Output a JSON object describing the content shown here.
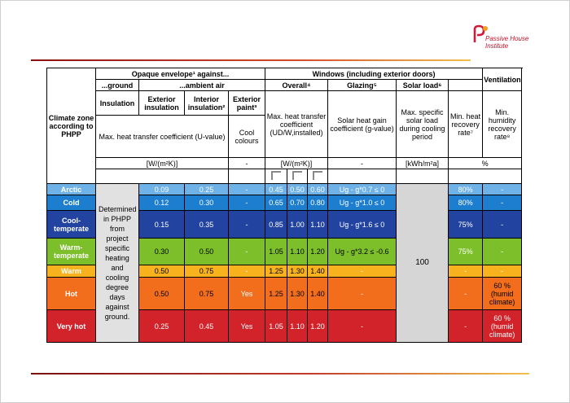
{
  "logo": {
    "line1": "Passive House",
    "line2": "Institute"
  },
  "header": {
    "climate_zone": "Climate zone according to PHPP",
    "opaque_envelope": "Opaque envelope¹ against...",
    "ground_group": "...ground",
    "air_group": "...ambient air",
    "insulation": "Insulation",
    "exterior_insulation": "Exterior insulation",
    "interior_insulation": "Interior insulation²",
    "exterior_paint": "Exterior paint³",
    "max_heat_transfer": "Max. heat transfer coefficient (U-value)",
    "cool_colours": "Cool colours",
    "windows": "Windows (including exterior doors)",
    "overall": "Overall⁴",
    "overall_desc": "Max. heat transfer coefficient (UD/W,installed)",
    "glazing": "Glazing⁵",
    "glazing_desc": "Solar heat gain coefficient (g-value)",
    "solar_load": "Solar load⁶",
    "solar_load_desc": "Max. specific solar load during cooling period",
    "ventilation": "Ventilation",
    "min_heat_recovery": "Min. heat recovery rate⁷",
    "min_humidity_recovery": "Min. humidity recovery rate⁸"
  },
  "units": {
    "u_value": "[W/(m²K)]",
    "paint": "-",
    "window": "[W/(m²K)]",
    "glazing": "-",
    "solar": "[kWh/m²a]",
    "ventilation": "%"
  },
  "ground_merged_text": "Determined in PHPP from project specific heating and cooling degree days against ground.",
  "solar_load_value": "100",
  "rows": [
    {
      "zone": "Arctic",
      "ext": "0.09",
      "int": "0.25",
      "paint": "-",
      "w1": "0.45",
      "w2": "0.50",
      "w3": "0.60",
      "glazing": "Ug - g*0.7 ≤ 0",
      "hr": "80%",
      "hum": "-"
    },
    {
      "zone": "Cold",
      "ext": "0.12",
      "int": "0.30",
      "paint": "-",
      "w1": "0.65",
      "w2": "0.70",
      "w3": "0.80",
      "glazing": "Ug - g*1.0 ≤ 0",
      "hr": "80%",
      "hum": "-"
    },
    {
      "zone": "Cool-temperate",
      "ext": "0.15",
      "int": "0.35",
      "paint": "-",
      "w1": "0.85",
      "w2": "1.00",
      "w3": "1.10",
      "glazing": "Ug - g*1.6 ≤ 0",
      "hr": "75%",
      "hum": "-"
    },
    {
      "zone": "Warm-temperate",
      "ext": "0.30",
      "int": "0.50",
      "paint": "-",
      "w1": "1.05",
      "w2": "1.10",
      "w3": "1.20",
      "glazing": "Ug - g*3.2 ≤ -0.6",
      "hr": "75%",
      "hum": "-"
    },
    {
      "zone": "Warm",
      "ext": "0.50",
      "int": "0.75",
      "paint": "-",
      "w1": "1.25",
      "w2": "1.30",
      "w3": "1.40",
      "glazing": "-",
      "hr": "-",
      "hum": "-"
    },
    {
      "zone": "Hot",
      "ext": "0.50",
      "int": "0.75",
      "paint": "Yes",
      "w1": "1.25",
      "w2": "1.30",
      "w3": "1.40",
      "glazing": "-",
      "hr": "-",
      "hum": "60 % (humid climate)"
    },
    {
      "zone": "Very hot",
      "ext": "0.25",
      "int": "0.45",
      "paint": "Yes",
      "w1": "1.05",
      "w2": "1.10",
      "w3": "1.20",
      "glazing": "-",
      "hr": "-",
      "hum": "60 % (humid climate)"
    }
  ]
}
